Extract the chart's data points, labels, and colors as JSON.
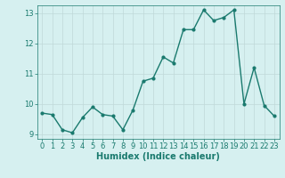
{
  "xlabel": "Humidex (Indice chaleur)",
  "ylabel": "",
  "x": [
    0,
    1,
    2,
    3,
    4,
    5,
    6,
    7,
    8,
    9,
    10,
    11,
    12,
    13,
    14,
    15,
    16,
    17,
    18,
    19,
    20,
    21,
    22,
    23
  ],
  "y": [
    9.7,
    9.65,
    9.15,
    9.05,
    9.55,
    9.9,
    9.65,
    9.6,
    9.15,
    9.8,
    10.75,
    10.85,
    11.55,
    11.35,
    12.45,
    12.45,
    13.1,
    12.75,
    12.85,
    13.1,
    10.0,
    11.2,
    9.95,
    9.6
  ],
  "line_color": "#1a7a6e",
  "marker": "o",
  "marker_size": 2,
  "line_width": 1.0,
  "bg_color": "#d6f0f0",
  "grid_color": "#c0d8d8",
  "tick_color": "#1a7a6e",
  "label_color": "#1a7a6e",
  "ylim": [
    8.85,
    13.25
  ],
  "yticks": [
    9,
    10,
    11,
    12,
    13
  ],
  "xlim": [
    -0.5,
    23.5
  ],
  "xticks": [
    0,
    1,
    2,
    3,
    4,
    5,
    6,
    7,
    8,
    9,
    10,
    11,
    12,
    13,
    14,
    15,
    16,
    17,
    18,
    19,
    20,
    21,
    22,
    23
  ],
  "tick_fontsize": 6,
  "xlabel_fontsize": 7
}
